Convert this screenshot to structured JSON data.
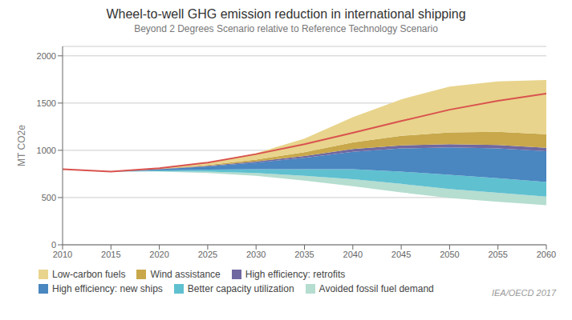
{
  "chart_data": {
    "type": "area",
    "title": "Wheel-to-well GHG emission reduction in international shipping",
    "subtitle": "Beyond 2 Degrees Scenario relative to Reference Technology Scenario",
    "ylabel": "MT CO2e",
    "annotations": [
      "IEA/OECD 2017"
    ],
    "stacked": true,
    "grid": true,
    "x": [
      2010,
      2015,
      2020,
      2025,
      2030,
      2035,
      2040,
      2045,
      2050,
      2055,
      2060
    ],
    "floor": [
      800,
      775,
      775,
      760,
      730,
      680,
      620,
      555,
      495,
      455,
      420
    ],
    "series": [
      {
        "name": "Avoided fossil fuel demand",
        "color": "#b5ddd0",
        "type": "area",
        "values": [
          0,
          0,
          5,
          15,
          30,
          50,
          75,
          90,
          95,
          95,
          90
        ]
      },
      {
        "name": "Better capacity utilization",
        "color": "#5fc0d0",
        "type": "area",
        "values": [
          0,
          0,
          8,
          20,
          40,
          70,
          105,
          130,
          150,
          155,
          155
        ]
      },
      {
        "name": "High efficiency: new ships",
        "color": "#4a86c0",
        "type": "area",
        "values": [
          0,
          0,
          12,
          35,
          70,
          120,
          185,
          245,
          290,
          315,
          325
        ]
      },
      {
        "name": "High efficiency: retrofits",
        "color": "#7068a0",
        "type": "area",
        "values": [
          0,
          0,
          2,
          6,
          12,
          20,
          28,
          33,
          35,
          36,
          36
        ]
      },
      {
        "name": "Wind assistance",
        "color": "#c8a84b",
        "type": "area",
        "values": [
          0,
          0,
          2,
          8,
          20,
          40,
          70,
          100,
          125,
          140,
          145
        ]
      },
      {
        "name": "Low-carbon fuels",
        "color": "#e8d48c",
        "type": "area",
        "values": [
          0,
          0,
          6,
          26,
          68,
          145,
          267,
          387,
          485,
          534,
          574
        ]
      },
      {
        "color": "#d9534f",
        "type": "line",
        "values": [
          800,
          775,
          810,
          870,
          960,
          1065,
          1185,
          1310,
          1430,
          1525,
          1600
        ]
      }
    ],
    "xlim": [
      2010,
      2060
    ],
    "xticks": [
      2010,
      2015,
      2020,
      2025,
      2030,
      2035,
      2040,
      2045,
      2050,
      2055,
      2060
    ],
    "ylim": [
      0,
      2100
    ],
    "yticks": [
      0,
      500,
      1000,
      1500,
      2000
    ]
  }
}
